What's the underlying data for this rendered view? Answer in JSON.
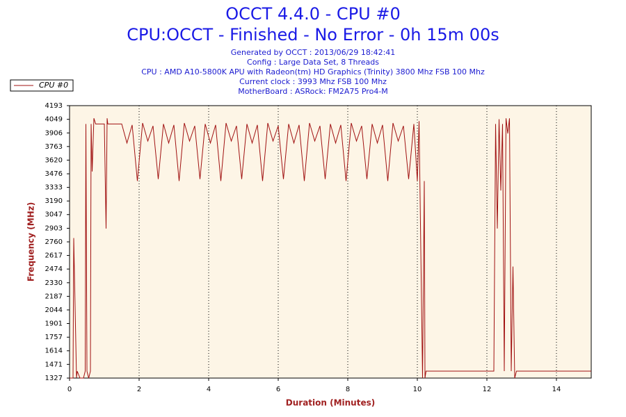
{
  "chart_data": {
    "type": "line",
    "title": "OCCT 4.4.0 - CPU #0",
    "subtitle": "CPU:OCCT - Finished - No Error - 0h 15m 00s",
    "notes": [
      "Generated by OCCT : 2013/06/29 18:42:41",
      "Config : Large Data Set, 8 Threads",
      "CPU : AMD A10-5800K APU with Radeon(tm) HD Graphics (Trinity) 3800 Mhz FSB 100 Mhz",
      "Current clock : 3993 Mhz FSB 100 Mhz",
      "MotherBoard : ASRock: FM2A75 Pro4-M"
    ],
    "x_label": "Duration (Minutes)",
    "y_label": "Frequency (MHz)",
    "legend": "top-left",
    "grid": true,
    "xlim": [
      0,
      15
    ],
    "ylim": [
      1327,
      4193
    ],
    "xticks": [
      0,
      2,
      4,
      6,
      8,
      10,
      12,
      14
    ],
    "yticks": [
      1327,
      1471,
      1614,
      1757,
      1901,
      2044,
      2187,
      2330,
      2474,
      2617,
      2760,
      2903,
      3047,
      3190,
      3333,
      3476,
      3620,
      3763,
      3906,
      4049,
      4193
    ],
    "series": [
      {
        "name": "CPU #0",
        "color": "#a01010",
        "x": [
          0,
          0.1,
          0.12,
          0.2,
          0.22,
          0.3,
          0.4,
          0.45,
          0.47,
          0.5,
          0.55,
          0.6,
          0.62,
          0.65,
          0.7,
          0.75,
          0.8,
          1.0,
          1.05,
          1.08,
          1.1,
          1.4,
          1.5,
          1.65,
          1.8,
          1.95,
          2.1,
          2.25,
          2.4,
          2.55,
          2.7,
          2.85,
          3.0,
          3.15,
          3.3,
          3.45,
          3.6,
          3.75,
          3.9,
          4.05,
          4.2,
          4.35,
          4.5,
          4.65,
          4.8,
          4.95,
          5.1,
          5.25,
          5.4,
          5.55,
          5.7,
          5.85,
          6.0,
          6.15,
          6.3,
          6.45,
          6.6,
          6.75,
          6.9,
          7.05,
          7.2,
          7.35,
          7.5,
          7.65,
          7.8,
          7.95,
          8.1,
          8.25,
          8.4,
          8.55,
          8.7,
          8.85,
          9.0,
          9.15,
          9.3,
          9.45,
          9.6,
          9.75,
          9.9,
          10.0,
          10.05,
          10.15,
          10.2,
          10.22,
          10.25,
          10.3,
          12.2,
          12.25,
          12.3,
          12.35,
          12.4,
          12.45,
          12.5,
          12.55,
          12.6,
          12.65,
          12.7,
          12.75,
          12.8,
          12.85,
          15
        ],
        "values": [
          1327,
          1327,
          2800,
          1330,
          1400,
          1327,
          1327,
          1400,
          4000,
          1400,
          1327,
          1400,
          4000,
          3500,
          4060,
          4000,
          4000,
          4000,
          2900,
          4060,
          4000,
          4000,
          4000,
          3800,
          3990,
          3400,
          4010,
          3820,
          3980,
          3420,
          4000,
          3800,
          3990,
          3400,
          4010,
          3820,
          3980,
          3420,
          4000,
          3800,
          3990,
          3400,
          4010,
          3820,
          3980,
          3420,
          4000,
          3800,
          3990,
          3400,
          4010,
          3820,
          3980,
          3420,
          4000,
          3800,
          3990,
          3400,
          4010,
          3820,
          3980,
          3420,
          4000,
          3800,
          3990,
          3400,
          4010,
          3820,
          3980,
          3420,
          4000,
          3800,
          3990,
          3400,
          4010,
          3820,
          3980,
          3420,
          4000,
          3400,
          4030,
          1327,
          3400,
          1327,
          1400,
          1400,
          1400,
          4000,
          2900,
          4050,
          3300,
          4000,
          1400,
          4060,
          3900,
          4060,
          1400,
          2500,
          1327,
          1400,
          1400
        ]
      }
    ]
  }
}
